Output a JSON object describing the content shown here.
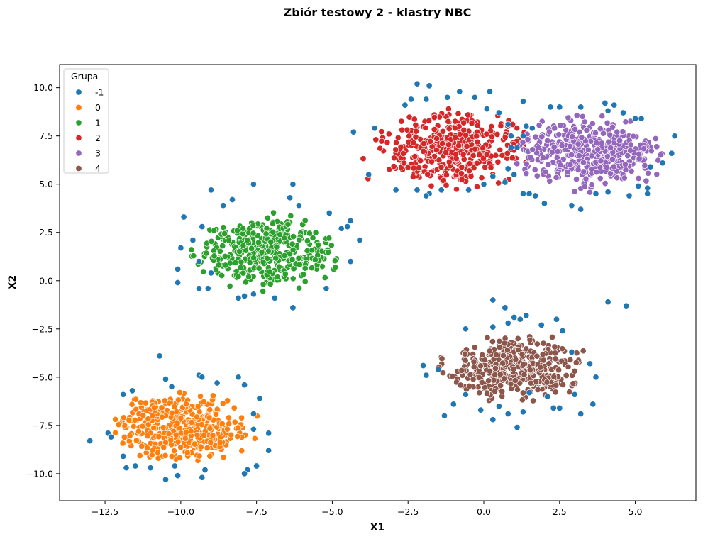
{
  "chart_data": {
    "type": "scatter",
    "title": "Zbiór testowy 2 - klastry NBC",
    "xlabel": "X1",
    "ylabel": "X2",
    "xlim": [
      -14.0,
      7.0
    ],
    "ylim": [
      -11.4,
      11.2
    ],
    "xticks": [
      -12.5,
      -10.0,
      -7.5,
      -5.0,
      -2.5,
      0.0,
      2.5,
      5.0
    ],
    "xtick_labels": [
      "−12.5",
      "−10.0",
      "−7.5",
      "−5.0",
      "−2.5",
      "0.0",
      "2.5",
      "5.0"
    ],
    "yticks": [
      10.0,
      7.5,
      5.0,
      2.5,
      0.0,
      -2.5,
      -5.0,
      -7.5,
      -10.0
    ],
    "ytick_labels": [
      "10.0",
      "7.5",
      "5.0",
      "2.5",
      "0.0",
      "−2.5",
      "−5.0",
      "−7.5",
      "−10.0"
    ],
    "grid": false,
    "legend": {
      "title": "Grupa",
      "position": "top-left",
      "entries": [
        {
          "label": "-1",
          "color": "#1f77b4"
        },
        {
          "label": "0",
          "color": "#ff7f0e"
        },
        {
          "label": "1",
          "color": "#2ca02c"
        },
        {
          "label": "2",
          "color": "#d62728"
        },
        {
          "label": "3",
          "color": "#9467bd"
        },
        {
          "label": "4",
          "color": "#8c564b"
        }
      ]
    },
    "series": [
      {
        "name": "4",
        "color": "#8c564b",
        "cluster": {
          "cx": 1.0,
          "cy": -4.5,
          "sx": 1.1,
          "sy": 0.8,
          "n": 400
        }
      },
      {
        "name": "0",
        "color": "#ff7f0e",
        "cluster": {
          "cx": -9.9,
          "cy": -7.6,
          "sx": 1.1,
          "sy": 0.8,
          "n": 400
        }
      },
      {
        "name": "1",
        "color": "#2ca02c",
        "cluster": {
          "cx": -7.2,
          "cy": 1.5,
          "sx": 1.1,
          "sy": 0.9,
          "n": 400
        }
      },
      {
        "name": "2",
        "color": "#d62728",
        "cluster": {
          "cx": -1.0,
          "cy": 6.8,
          "sx": 1.2,
          "sy": 0.9,
          "n": 400
        }
      },
      {
        "name": "3",
        "color": "#9467bd",
        "cluster": {
          "cx": 3.4,
          "cy": 6.6,
          "sx": 1.2,
          "sy": 0.9,
          "n": 400
        }
      },
      {
        "name": "-1",
        "color": "#1f77b4",
        "points": [
          [
            -13.0,
            -8.3
          ],
          [
            -12.4,
            -7.9
          ],
          [
            -12.3,
            -8.1
          ],
          [
            -11.9,
            -5.9
          ],
          [
            -11.6,
            -5.7
          ],
          [
            -11.8,
            -9.7
          ],
          [
            -11.5,
            -9.6
          ],
          [
            -11.9,
            -9.1
          ],
          [
            -11.0,
            -9.7
          ],
          [
            -10.7,
            -3.9
          ],
          [
            -10.5,
            -5.1
          ],
          [
            -10.5,
            -10.3
          ],
          [
            -10.3,
            -5.5
          ],
          [
            -10.2,
            -9.6
          ],
          [
            -10.1,
            -10.1
          ],
          [
            -9.4,
            -4.9
          ],
          [
            -9.3,
            -5.0
          ],
          [
            -9.2,
            -9.8
          ],
          [
            -9.3,
            -10.2
          ],
          [
            -8.8,
            -5.3
          ],
          [
            -8.1,
            -5.0
          ],
          [
            -7.9,
            -5.4
          ],
          [
            -7.6,
            -6.9
          ],
          [
            -7.4,
            -6.1
          ],
          [
            -7.1,
            -7.9
          ],
          [
            -7.1,
            -8.8
          ],
          [
            -7.8,
            -9.8
          ],
          [
            -7.9,
            -10.0
          ],
          [
            -7.5,
            -9.6
          ],
          [
            -7.6,
            -7.7
          ],
          [
            -9.9,
            3.3
          ],
          [
            -10.1,
            0.6
          ],
          [
            -10.0,
            1.7
          ],
          [
            -9.6,
            2.1
          ],
          [
            -9.4,
            1.0
          ],
          [
            -9.3,
            2.8
          ],
          [
            -9.4,
            -0.4
          ],
          [
            -9.1,
            -0.4
          ],
          [
            -9.0,
            4.7
          ],
          [
            -8.3,
            4.2
          ],
          [
            -8.6,
            3.9
          ],
          [
            -7.6,
            5.0
          ],
          [
            -8.1,
            -0.9
          ],
          [
            -7.9,
            -0.8
          ],
          [
            -7.6,
            -0.7
          ],
          [
            -6.3,
            5.0
          ],
          [
            -6.4,
            4.3
          ],
          [
            -6.1,
            3.9
          ],
          [
            -5.1,
            3.5
          ],
          [
            -4.7,
            2.7
          ],
          [
            -4.4,
            3.1
          ],
          [
            -4.5,
            2.8
          ],
          [
            -4.4,
            1.0
          ],
          [
            -4.1,
            2.1
          ],
          [
            -5.2,
            -0.4
          ],
          [
            -6.9,
            -0.9
          ],
          [
            -6.3,
            -1.4
          ],
          [
            -10.1,
            -0.1
          ],
          [
            -9.0,
            0.4
          ],
          [
            -4.3,
            7.7
          ],
          [
            -3.6,
            7.9
          ],
          [
            -3.8,
            5.5
          ],
          [
            -2.6,
            9.1
          ],
          [
            -2.4,
            9.4
          ],
          [
            -2.2,
            10.2
          ],
          [
            -1.9,
            9.4
          ],
          [
            -1.8,
            10.1
          ],
          [
            -1.2,
            9.5
          ],
          [
            -0.8,
            9.8
          ],
          [
            -0.3,
            9.5
          ],
          [
            0.2,
            9.8
          ],
          [
            0.1,
            8.9
          ],
          [
            0.5,
            8.7
          ],
          [
            0.8,
            8.1
          ],
          [
            0.9,
            7.5
          ],
          [
            -2.9,
            4.7
          ],
          [
            -2.2,
            4.7
          ],
          [
            -1.8,
            4.5
          ],
          [
            -1.9,
            4.4
          ],
          [
            -1.4,
            4.7
          ],
          [
            -0.5,
            4.7
          ],
          [
            0.0,
            5.0
          ],
          [
            0.3,
            5.4
          ],
          [
            0.7,
            5.1
          ],
          [
            0.9,
            6.9
          ],
          [
            1.1,
            6.9
          ],
          [
            1.3,
            7.5
          ],
          [
            1.4,
            8.0
          ],
          [
            1.6,
            7.9
          ],
          [
            1.3,
            9.3
          ],
          [
            2.2,
            9.0
          ],
          [
            2.5,
            9.0
          ],
          [
            3.2,
            9.0
          ],
          [
            4.0,
            9.2
          ],
          [
            4.3,
            9.1
          ],
          [
            4.1,
            8.8
          ],
          [
            4.6,
            8.7
          ],
          [
            5.0,
            8.4
          ],
          [
            5.2,
            8.4
          ],
          [
            5.9,
            6.1
          ],
          [
            6.2,
            6.6
          ],
          [
            6.3,
            7.5
          ],
          [
            5.5,
            5.9
          ],
          [
            5.4,
            4.5
          ],
          [
            5.4,
            4.8
          ],
          [
            5.1,
            4.9
          ],
          [
            4.8,
            4.4
          ],
          [
            4.1,
            4.6
          ],
          [
            3.7,
            4.5
          ],
          [
            3.2,
            3.7
          ],
          [
            2.9,
            3.9
          ],
          [
            2.0,
            4.0
          ],
          [
            1.7,
            4.4
          ],
          [
            1.5,
            4.5
          ],
          [
            1.3,
            4.5
          ],
          [
            1.0,
            5.5
          ],
          [
            0.8,
            5.8
          ],
          [
            -2.0,
            -4.4
          ],
          [
            -1.9,
            -4.9
          ],
          [
            -1.5,
            -4.6
          ],
          [
            -1.3,
            -7.0
          ],
          [
            -1.0,
            -6.4
          ],
          [
            -0.6,
            -5.9
          ],
          [
            0.3,
            -1.0
          ],
          [
            0.3,
            -2.4
          ],
          [
            -0.6,
            -2.5
          ],
          [
            0.7,
            -1.4
          ],
          [
            0.8,
            -2.2
          ],
          [
            1.0,
            -1.9
          ],
          [
            1.2,
            -2.0
          ],
          [
            1.4,
            -1.8
          ],
          [
            1.9,
            -2.3
          ],
          [
            2.4,
            -2.0
          ],
          [
            2.6,
            -2.6
          ],
          [
            2.3,
            -6.6
          ],
          [
            2.5,
            -6.6
          ],
          [
            3.0,
            -5.9
          ],
          [
            3.2,
            -6.9
          ],
          [
            3.6,
            -6.4
          ],
          [
            3.5,
            -4.3
          ],
          [
            3.7,
            -5.0
          ],
          [
            4.1,
            -1.1
          ],
          [
            4.7,
            -1.3
          ],
          [
            1.1,
            -7.6
          ],
          [
            0.8,
            -6.9
          ],
          [
            0.3,
            -7.2
          ],
          [
            -0.1,
            -6.7
          ],
          [
            0.5,
            -6.5
          ],
          [
            1.3,
            -6.8
          ],
          [
            1.5,
            -5.8
          ],
          [
            2.1,
            -6.0
          ],
          [
            2.9,
            -3.7
          ]
        ]
      }
    ]
  }
}
